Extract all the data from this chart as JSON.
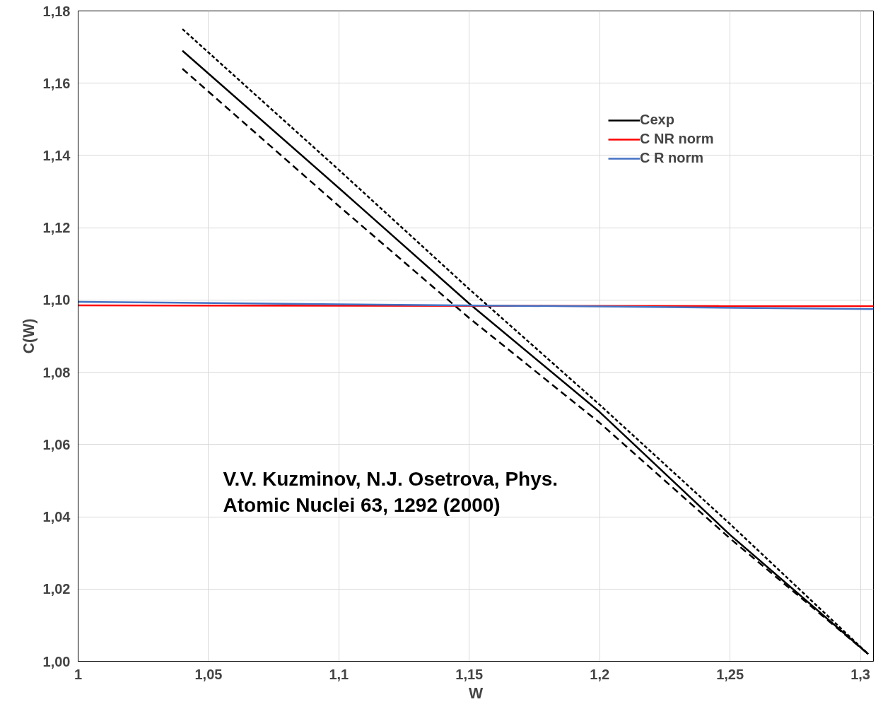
{
  "chart_data": {
    "type": "line",
    "xlabel": "W",
    "ylabel": "C(W)",
    "xlim": [
      1,
      1.305
    ],
    "ylim": [
      1.0,
      1.18
    ],
    "xticks": [
      1,
      {
        "value": 1.05,
        "label": "1,05"
      },
      {
        "value": 1.1,
        "label": "1,1"
      },
      {
        "value": 1.15,
        "label": "1,15"
      },
      {
        "value": 1.2,
        "label": "1,2"
      },
      {
        "value": 1.25,
        "label": "1,25"
      },
      {
        "value": 1.3,
        "label": "1,3"
      }
    ],
    "yticks": [
      {
        "value": 1.0,
        "label": "1,00"
      },
      {
        "value": 1.02,
        "label": "1,02"
      },
      {
        "value": 1.04,
        "label": "1,04"
      },
      {
        "value": 1.06,
        "label": "1,06"
      },
      {
        "value": 1.08,
        "label": "1,08"
      },
      {
        "value": 1.1,
        "label": "1,10"
      },
      {
        "value": 1.12,
        "label": "1,12"
      },
      {
        "value": 1.14,
        "label": "1,14"
      },
      {
        "value": 1.16,
        "label": "1,16"
      },
      {
        "value": 1.18,
        "label": "1,18"
      }
    ],
    "grid": true,
    "legend": "top right",
    "series": [
      {
        "name": "Cexp",
        "color": "#000000",
        "line_style": "solid",
        "x": [
          1.04,
          1.1,
          1.15,
          1.2,
          1.25,
          1.303
        ],
        "values": [
          1.169,
          1.131,
          1.099,
          1.069,
          1.035,
          1.002
        ]
      },
      {
        "color": "#000000",
        "line_style": "dotted",
        "x": [
          1.04,
          1.1,
          1.15,
          1.2,
          1.25,
          1.303
        ],
        "values": [
          1.175,
          1.136,
          1.103,
          1.071,
          1.038,
          1.002
        ]
      },
      {
        "color": "#000000",
        "line_style": "dashed",
        "x": [
          1.04,
          1.1,
          1.15,
          1.2,
          1.25,
          1.303
        ],
        "values": [
          1.164,
          1.126,
          1.095,
          1.066,
          1.034,
          1.002
        ]
      },
      {
        "name": "C NR norm",
        "color": "#ff0000",
        "line_style": "solid",
        "x": [
          1.0,
          1.305
        ],
        "values": [
          1.0985,
          1.0983
        ]
      },
      {
        "name": "C R norm",
        "color": "#4472c4",
        "line_style": "solid",
        "x": [
          1.0,
          1.1,
          1.2,
          1.305
        ],
        "values": [
          1.0995,
          1.0988,
          1.0982,
          1.0975
        ]
      }
    ],
    "annotations": [
      "V.V. Kuzminov, N.J. Osetrova, Phys.\nAtomic Nuclei 63, 1292 (2000)"
    ]
  }
}
